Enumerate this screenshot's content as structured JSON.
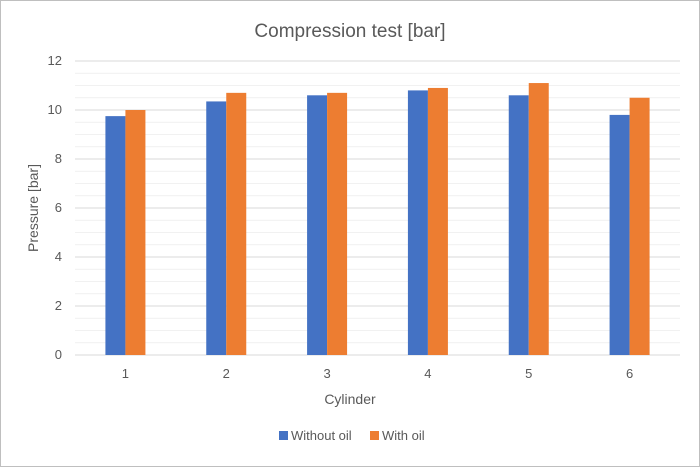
{
  "chart_data": {
    "type": "bar",
    "title": "Compression  test [bar]",
    "xlabel": "Cylinder",
    "ylabel": "Pressure [bar]",
    "categories": [
      "1",
      "2",
      "3",
      "4",
      "5",
      "6"
    ],
    "series": [
      {
        "name": "Without oil",
        "color": "#4472c4",
        "values": [
          9.75,
          10.35,
          10.6,
          10.8,
          10.6,
          9.8
        ]
      },
      {
        "name": "With oil",
        "color": "#ed7d31",
        "values": [
          10.0,
          10.7,
          10.7,
          10.9,
          11.1,
          10.5
        ]
      }
    ],
    "ylim": [
      0,
      12
    ],
    "yticks": [
      "0",
      "2",
      "4",
      "6",
      "8",
      "10",
      "12"
    ],
    "grid": true,
    "legend_position": "bottom"
  }
}
